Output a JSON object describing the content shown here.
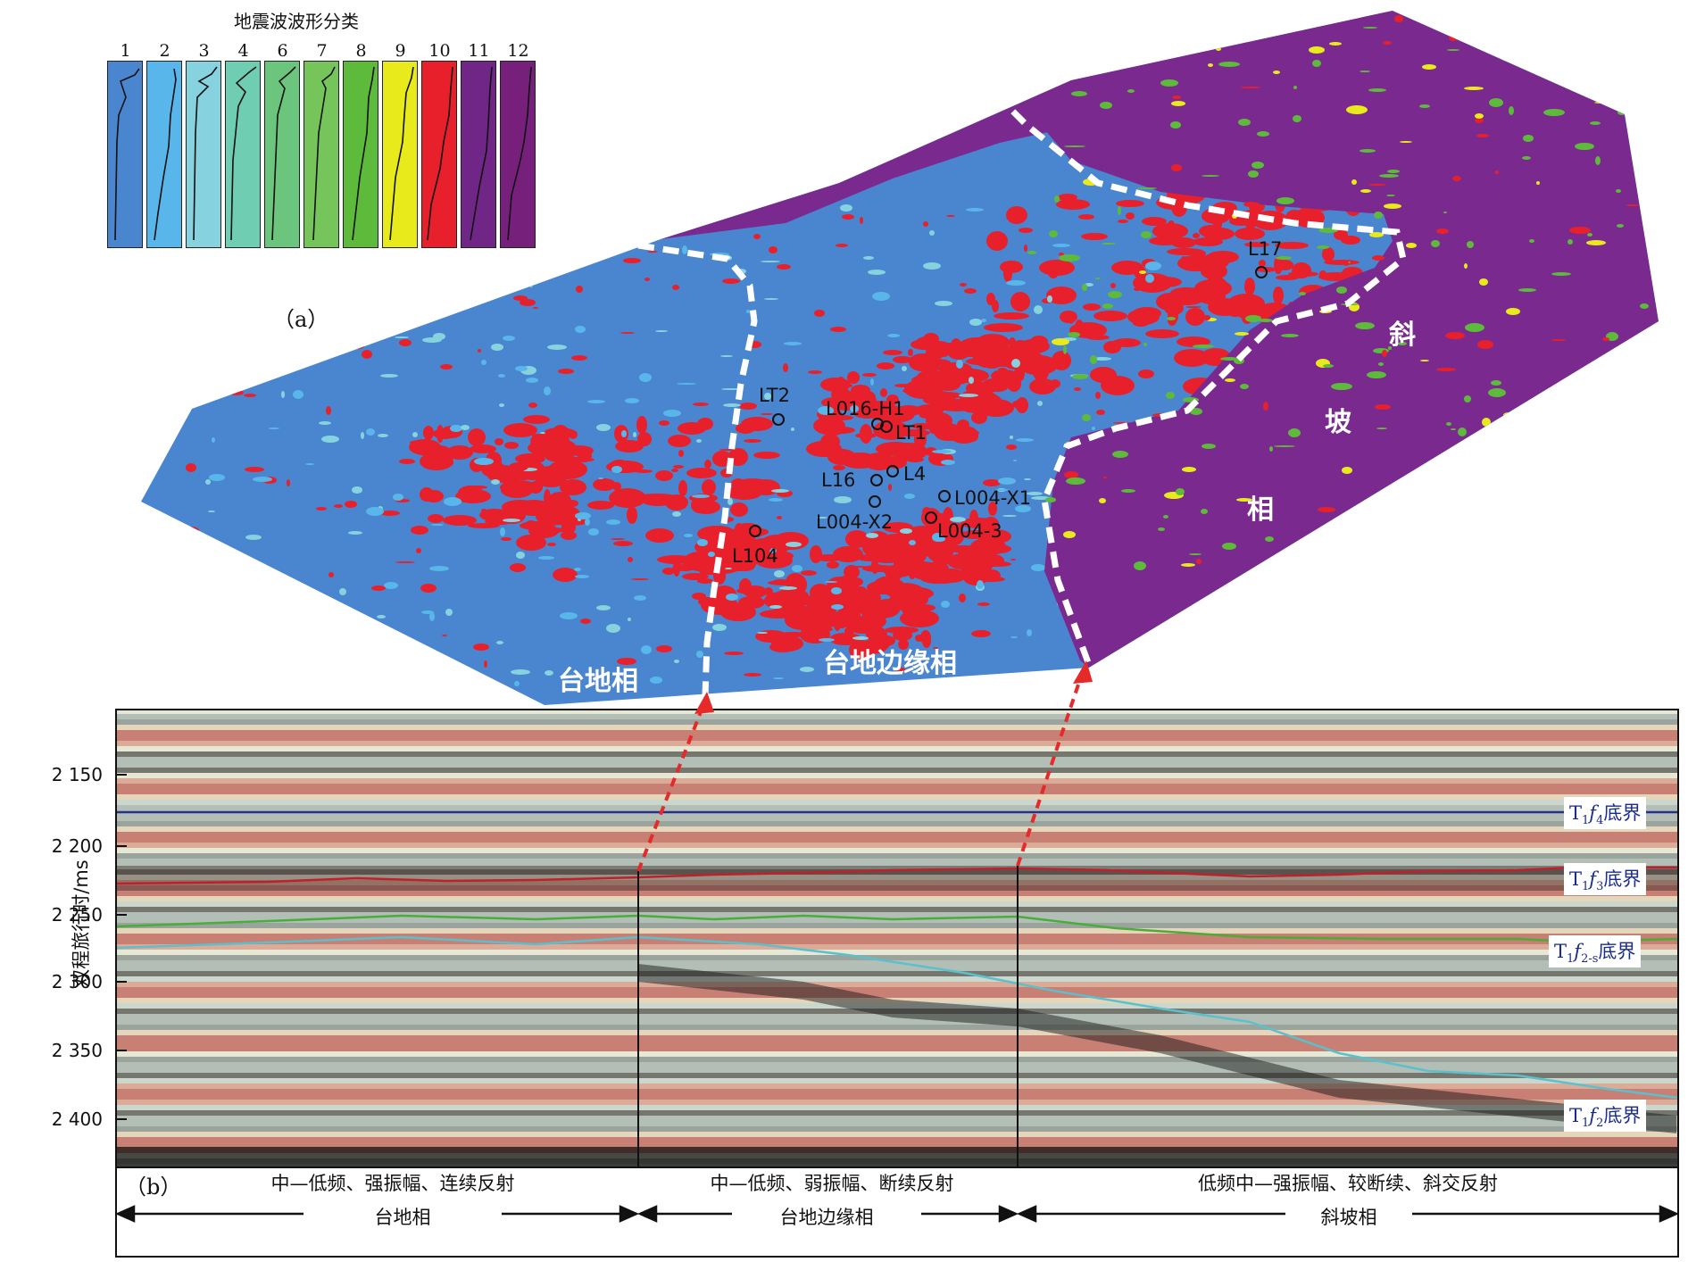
{
  "legend": {
    "title": "地震波波形分类",
    "classes": [
      {
        "num": "1",
        "color": "#4a86cf"
      },
      {
        "num": "2",
        "color": "#58b6ea"
      },
      {
        "num": "3",
        "color": "#86d2df"
      },
      {
        "num": "4",
        "color": "#6fcdb2"
      },
      {
        "num": "6",
        "color": "#6cc57c"
      },
      {
        "num": "7",
        "color": "#76c55a"
      },
      {
        "num": "8",
        "color": "#5eba3b"
      },
      {
        "num": "9",
        "color": "#e8ea1c"
      },
      {
        "num": "10",
        "color": "#e8202b"
      },
      {
        "num": "11",
        "color": "#6f2686"
      },
      {
        "num": "12",
        "color": "#76207c"
      }
    ]
  },
  "panel_a": {
    "label": "（a）",
    "wells": [
      {
        "name": "L17"
      },
      {
        "name": "LT2"
      },
      {
        "name": "L016-H1"
      },
      {
        "name": "LT1"
      },
      {
        "name": "L4"
      },
      {
        "name": "L16"
      },
      {
        "name": "L004-X1"
      },
      {
        "name": "L004-X2"
      },
      {
        "name": "L004-3"
      },
      {
        "name": "L104"
      }
    ],
    "facies": {
      "platform": "台地相",
      "platform_margin": "台地边缘相",
      "slope_1": "斜",
      "slope_2": "坡",
      "slope_3": "相"
    }
  },
  "panel_b": {
    "label": "（b）",
    "y_axis_label": "双程旅行时/ms",
    "y_ticks": [
      "2 150",
      "2 200",
      "2 250",
      "2 300",
      "2 350",
      "2 400"
    ],
    "horizons": {
      "tf4": {
        "prefix": "T",
        "sub1": "1",
        "italic": "f",
        "sub2": "4",
        "suffix": "底界"
      },
      "tf3": {
        "prefix": "T",
        "sub1": "1",
        "italic": "f",
        "sub2": "3",
        "suffix": "底界"
      },
      "tf2s": {
        "prefix": "T",
        "sub1": "1",
        "italic": "f",
        "sub2": "2-s",
        "suffix": "底界"
      },
      "tf2": {
        "prefix": "T",
        "sub1": "1",
        "italic": "f",
        "sub2": "2",
        "suffix": "底界"
      }
    },
    "segments": [
      {
        "desc": "中—低频、强振幅、连续反射",
        "facies": "台地相"
      },
      {
        "desc": "中—低频、弱振幅、断续反射",
        "facies": "台地边缘相"
      },
      {
        "desc": "低频中—强振幅、较断续、斜交反射",
        "facies": "斜坡相"
      }
    ]
  }
}
